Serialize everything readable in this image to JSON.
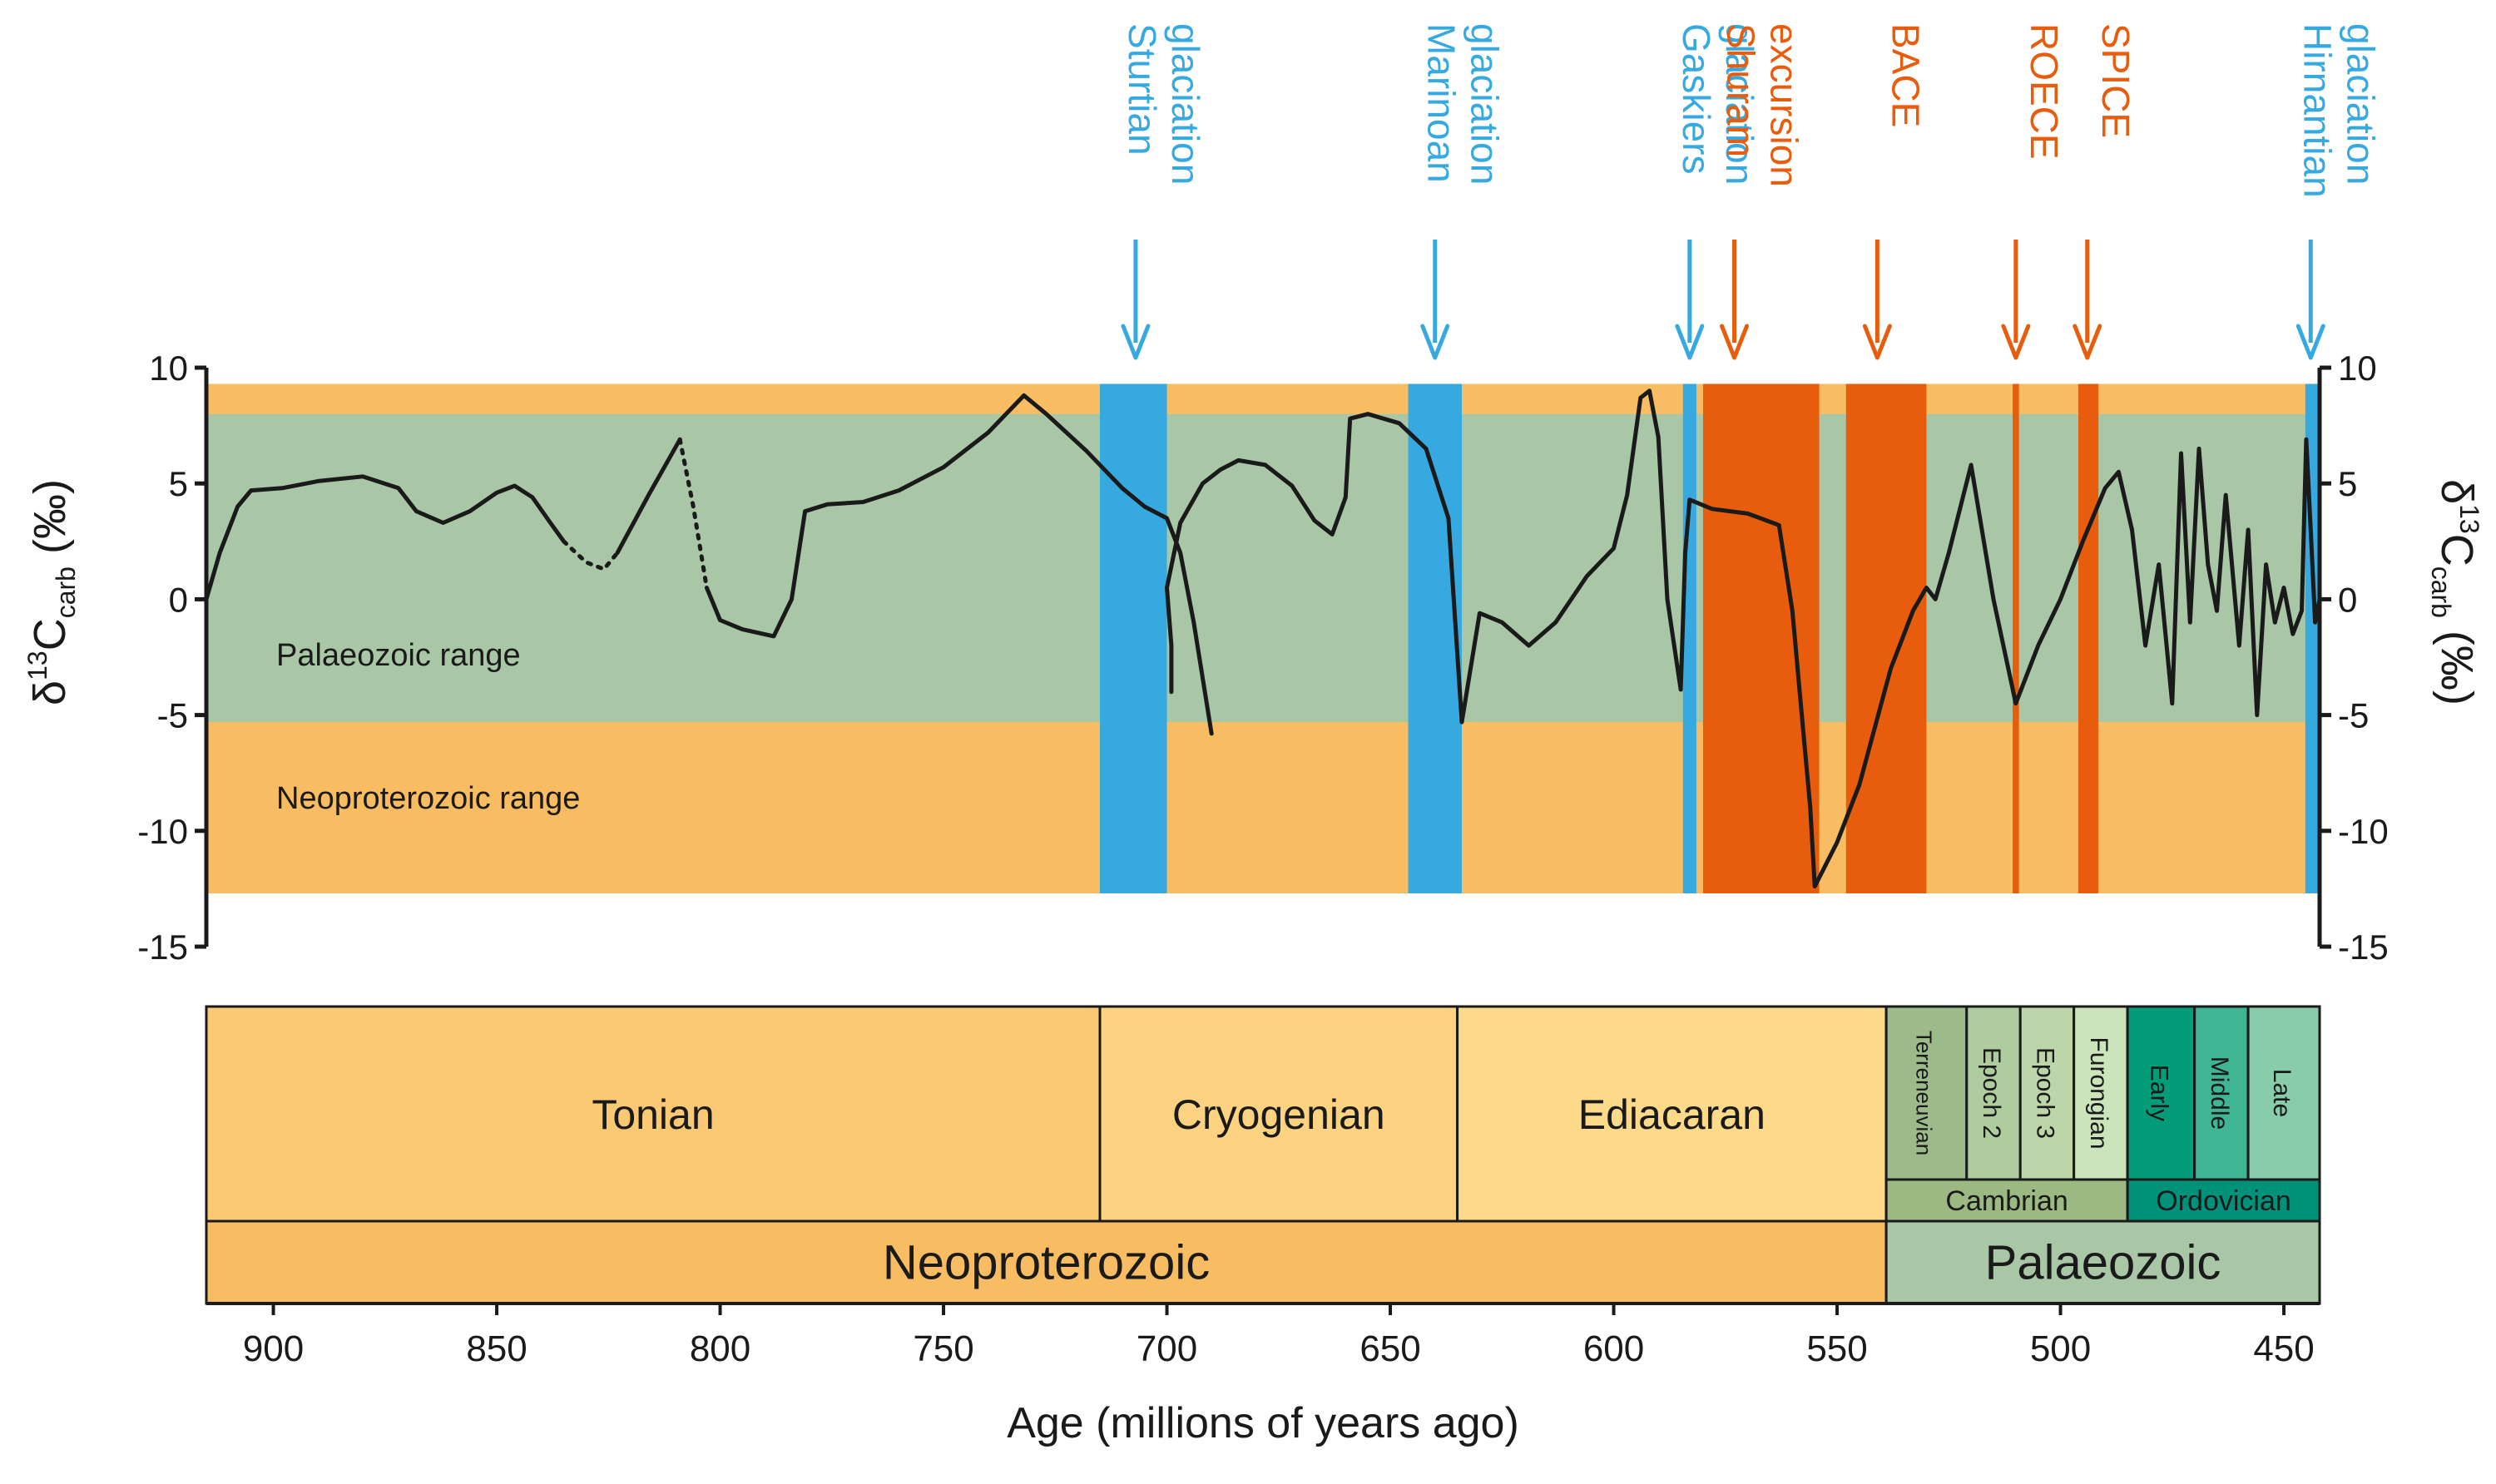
{
  "chart_data": {
    "type": "line",
    "x_axis": {
      "label": "Age (millions of years ago)",
      "range": [
        915,
        442
      ],
      "ticks": [
        900,
        850,
        800,
        750,
        700,
        650,
        600,
        550,
        500,
        450
      ]
    },
    "y_axis": {
      "label_main": "δ",
      "label_sup": "13",
      "label_c": "C",
      "label_sub": "carb",
      "label_unit": " (‰)",
      "range": [
        -15,
        10
      ],
      "ticks": [
        10,
        5,
        0,
        -5,
        -10,
        -15
      ],
      "tick_labels": [
        "10",
        "5",
        "0",
        "-5",
        "-10",
        "-15"
      ]
    },
    "colors": {
      "orange_band": "#f8bd62",
      "green_band": "#a9c6a6",
      "glaciation": "#36a9e0",
      "excursion": "#e85c0d",
      "curve": "#1a1a1a"
    },
    "ranges": [
      {
        "name": "Palaeozoic range",
        "y": [
          -5.3,
          8
        ]
      },
      {
        "name": "Neoproterozoic range",
        "y": [
          -12.7,
          9.3
        ]
      }
    ],
    "events": [
      {
        "name": "Sturtian glaciation",
        "lines": [
          "Sturtian",
          "glaciation"
        ],
        "kind": "glaciation",
        "start": 715,
        "end": 700,
        "arrow_at": 707
      },
      {
        "name": "Marinoan glaciation",
        "lines": [
          "Marinoan",
          "glaciation"
        ],
        "kind": "glaciation",
        "start": 646,
        "end": 634,
        "arrow_at": 640
      },
      {
        "name": "Gaskiers glaciation",
        "lines": [
          "Gaskiers",
          "glaciation"
        ],
        "kind": "glaciation",
        "start": 584.5,
        "end": 581.5,
        "arrow_at": 583
      },
      {
        "name": "Shuram excursion",
        "lines": [
          "Shuram",
          "excursion"
        ],
        "kind": "excursion",
        "start": 580,
        "end": 554,
        "arrow_at": 573
      },
      {
        "name": "BACE",
        "lines": [
          "BACE"
        ],
        "kind": "excursion",
        "start": 548,
        "end": 530,
        "arrow_at": 541
      },
      {
        "name": "ROECE",
        "lines": [
          "ROECE"
        ],
        "kind": "excursion",
        "start": 510.7,
        "end": 509.3,
        "arrow_at": 510
      },
      {
        "name": "SPICE",
        "lines": [
          "SPICE"
        ],
        "kind": "excursion",
        "start": 496,
        "end": 491.5,
        "arrow_at": 494
      },
      {
        "name": "Hirnantian glaciation",
        "lines": [
          "Hirnantian",
          "glaciation"
        ],
        "kind": "glaciation",
        "start": 445.2,
        "end": 442,
        "arrow_at": 444
      }
    ],
    "series": [
      {
        "style": "solid",
        "points": [
          [
            915,
            0
          ],
          [
            912,
            2
          ],
          [
            908,
            4
          ],
          [
            905,
            4.7
          ],
          [
            898,
            4.8
          ],
          [
            890,
            5.1
          ],
          [
            880,
            5.3
          ],
          [
            872,
            4.8
          ],
          [
            868,
            3.8
          ],
          [
            862,
            3.3
          ],
          [
            856,
            3.8
          ],
          [
            850,
            4.6
          ],
          [
            846,
            4.9
          ],
          [
            842,
            4.4
          ],
          [
            838,
            3.3
          ],
          [
            835,
            2.5
          ]
        ]
      },
      {
        "style": "dashed",
        "points": [
          [
            835,
            2.5
          ],
          [
            830,
            1.6
          ],
          [
            826,
            1.3
          ],
          [
            823,
            2
          ]
        ]
      },
      {
        "style": "solid",
        "points": [
          [
            823,
            2
          ],
          [
            816,
            4.5
          ],
          [
            809,
            6.9
          ]
        ]
      },
      {
        "style": "dashed",
        "points": [
          [
            809,
            6.9
          ],
          [
            806,
            4
          ],
          [
            803,
            0.5
          ]
        ]
      },
      {
        "style": "solid",
        "points": [
          [
            803,
            0.5
          ],
          [
            800,
            -0.9
          ],
          [
            795,
            -1.3
          ],
          [
            788,
            -1.6
          ],
          [
            784,
            0
          ],
          [
            781,
            3.8
          ],
          [
            776,
            4.1
          ],
          [
            768,
            4.2
          ],
          [
            760,
            4.7
          ],
          [
            750,
            5.7
          ],
          [
            740,
            7.2
          ],
          [
            732,
            8.8
          ],
          [
            727,
            8
          ],
          [
            718,
            6.4
          ],
          [
            710,
            4.8
          ],
          [
            705,
            4
          ],
          [
            700,
            3.5
          ],
          [
            697,
            2
          ],
          [
            694,
            -1
          ],
          [
            690,
            -5.8
          ]
        ]
      },
      {
        "style": "solid",
        "points": [
          [
            699,
            -4
          ],
          [
            699,
            -2
          ],
          [
            700,
            0.5
          ],
          [
            697,
            3.3
          ],
          [
            692,
            5
          ],
          [
            688,
            5.6
          ],
          [
            684,
            6
          ],
          [
            678,
            5.8
          ],
          [
            672,
            4.9
          ],
          [
            667,
            3.4
          ],
          [
            663,
            2.8
          ],
          [
            660,
            4.4
          ],
          [
            659,
            7.8
          ],
          [
            655,
            8
          ],
          [
            648,
            7.6
          ],
          [
            642,
            6.5
          ],
          [
            637,
            3.5
          ],
          [
            634,
            -5.3
          ]
        ]
      },
      {
        "style": "solid",
        "points": [
          [
            634,
            -5.3
          ],
          [
            630,
            -0.6
          ],
          [
            625,
            -1
          ],
          [
            619,
            -2
          ],
          [
            613,
            -1
          ],
          [
            606,
            1
          ],
          [
            600,
            2.2
          ],
          [
            597,
            4.5
          ],
          [
            594,
            8.7
          ],
          [
            592,
            9
          ],
          [
            590,
            7
          ],
          [
            588,
            0
          ],
          [
            585,
            -3.9
          ],
          [
            584,
            2
          ],
          [
            583,
            4.3
          ],
          [
            578,
            3.9
          ],
          [
            570,
            3.7
          ],
          [
            563,
            3.2
          ],
          [
            560,
            -0.5
          ],
          [
            558,
            -4.8
          ],
          [
            556,
            -9
          ],
          [
            555,
            -12.4
          ],
          [
            550,
            -10.5
          ],
          [
            545,
            -8
          ],
          [
            538,
            -3
          ],
          [
            533,
            -0.5
          ],
          [
            530,
            0.5
          ],
          [
            528,
            0
          ],
          [
            525,
            2
          ],
          [
            520,
            5.8
          ],
          [
            515,
            0
          ],
          [
            510,
            -4.5
          ],
          [
            505,
            -2
          ],
          [
            500,
            0
          ],
          [
            495,
            2.5
          ],
          [
            490,
            4.8
          ],
          [
            487,
            5.5
          ],
          [
            484,
            3
          ],
          [
            481,
            -2
          ],
          [
            478,
            1.5
          ],
          [
            475,
            -4.5
          ],
          [
            473,
            6.3
          ],
          [
            471,
            -1
          ],
          [
            469,
            6.5
          ],
          [
            467,
            1.5
          ],
          [
            465,
            -0.5
          ],
          [
            463,
            4.5
          ],
          [
            460,
            -2
          ],
          [
            458,
            3
          ],
          [
            456,
            -5
          ],
          [
            454,
            1.5
          ],
          [
            452,
            -1
          ],
          [
            450,
            0.5
          ],
          [
            448,
            -1.5
          ],
          [
            446,
            -0.5
          ],
          [
            445,
            6.9
          ],
          [
            444,
            3
          ],
          [
            443,
            -1
          ],
          [
            442,
            0
          ]
        ]
      }
    ],
    "periods": [
      {
        "name": "Tonian",
        "start": 915,
        "end": 715,
        "color": "#fbc873"
      },
      {
        "name": "Cryogenian",
        "start": 715,
        "end": 635,
        "color": "#fdd280"
      },
      {
        "name": "Ediacaran",
        "start": 635,
        "end": 539,
        "color": "#fdd98a"
      }
    ],
    "epochs": [
      {
        "name": "Terreneuvian",
        "start": 539,
        "end": 521,
        "color": "#9dba8b"
      },
      {
        "name": "Epoch 2",
        "start": 521,
        "end": 509,
        "color": "#aecc9e"
      },
      {
        "name": "Epoch 3",
        "start": 509,
        "end": 497,
        "color": "#bcd6aa"
      },
      {
        "name": "Furongian",
        "start": 497,
        "end": 485,
        "color": "#cce4bb"
      },
      {
        "name": "Early",
        "start": 485,
        "end": 470,
        "color": "#029d78"
      },
      {
        "name": "Middle",
        "start": 470,
        "end": 458,
        "color": "#3fb594"
      },
      {
        "name": "Late",
        "start": 458,
        "end": 442,
        "color": "#88ccac"
      }
    ],
    "phanerozoic_periods": [
      {
        "name": "Cambrian",
        "start": 539,
        "end": 485,
        "color": "#9cb883"
      },
      {
        "name": "Ordovician",
        "start": 485,
        "end": 442,
        "color": "#00917a"
      }
    ],
    "eras": [
      {
        "name": "Neoproterozoic",
        "start": 915,
        "end": 539,
        "color": "#f8bd62"
      },
      {
        "name": "Palaeozoic",
        "start": 539,
        "end": 442,
        "color": "#a9c6a6"
      }
    ]
  }
}
